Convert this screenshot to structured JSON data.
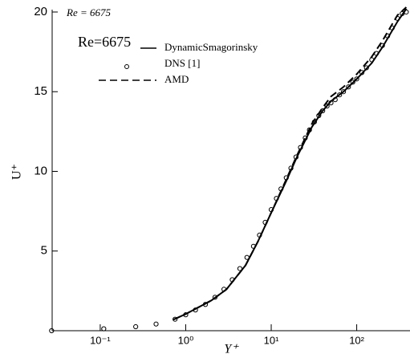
{
  "chart_data": {
    "type": "line",
    "annotation": "Re = 6675",
    "legend_title": "Re=6675",
    "x_label": "Y⁺",
    "y_label": "U⁺",
    "xscale": "log",
    "xlim": [
      0.0274,
      420
    ],
    "ylim": [
      0,
      20.15
    ],
    "xticks": [
      {
        "value": 0.1,
        "label": "10⁻¹"
      },
      {
        "value": 1,
        "label": "10⁰"
      },
      {
        "value": 10,
        "label": "10¹"
      },
      {
        "value": 100,
        "label": "10²"
      }
    ],
    "yticks": [
      5,
      10,
      15,
      20
    ],
    "series": [
      {
        "name": "DynamicSmagorinsky",
        "color": "#000000",
        "style": "solid",
        "x": [
          0.72,
          1,
          2,
          3,
          5,
          7,
          10,
          15,
          20,
          30,
          40,
          50,
          70,
          100,
          150,
          200,
          300,
          380
        ],
        "values": [
          0.7,
          1.05,
          1.9,
          2.6,
          4.1,
          5.6,
          7.4,
          9.4,
          10.9,
          12.8,
          13.8,
          14.4,
          15.0,
          15.8,
          16.8,
          17.8,
          19.4,
          20.2
        ]
      },
      {
        "name": "DNS [1]",
        "color": "#000000",
        "style": "circle",
        "x": [
          0.027,
          0.11,
          0.26,
          0.45,
          0.75,
          1.0,
          1.3,
          1.7,
          2.2,
          2.8,
          3.5,
          4.3,
          5.2,
          6.2,
          7.3,
          8.5,
          10,
          11.5,
          13,
          15,
          17,
          19.5,
          22,
          25,
          28,
          32,
          36,
          40,
          45,
          50,
          56,
          63,
          70,
          80,
          90,
          100,
          115,
          130,
          150,
          170,
          200,
          230,
          260,
          300,
          340,
          380
        ],
        "values": [
          0,
          0.12,
          0.25,
          0.42,
          0.72,
          1.0,
          1.3,
          1.65,
          2.1,
          2.6,
          3.2,
          3.9,
          4.6,
          5.3,
          6.0,
          6.8,
          7.6,
          8.3,
          8.9,
          9.6,
          10.2,
          10.9,
          11.5,
          12.1,
          12.6,
          13.1,
          13.5,
          13.8,
          14.1,
          14.3,
          14.5,
          14.8,
          15.0,
          15.3,
          15.6,
          15.8,
          16.2,
          16.5,
          17.0,
          17.4,
          17.9,
          18.5,
          19.0,
          19.6,
          19.9,
          20.0
        ]
      },
      {
        "name": "AMD",
        "color": "#000000",
        "style": "dashed",
        "x": [
          0.72,
          1,
          2,
          3,
          5,
          7,
          10,
          15,
          20,
          30,
          40,
          50,
          70,
          100,
          150,
          200,
          300,
          380
        ],
        "values": [
          0.7,
          1.05,
          1.9,
          2.6,
          4.1,
          5.6,
          7.4,
          9.5,
          11.0,
          13.0,
          14.0,
          14.7,
          15.3,
          16.1,
          17.2,
          18.2,
          19.8,
          20.3
        ]
      }
    ]
  }
}
